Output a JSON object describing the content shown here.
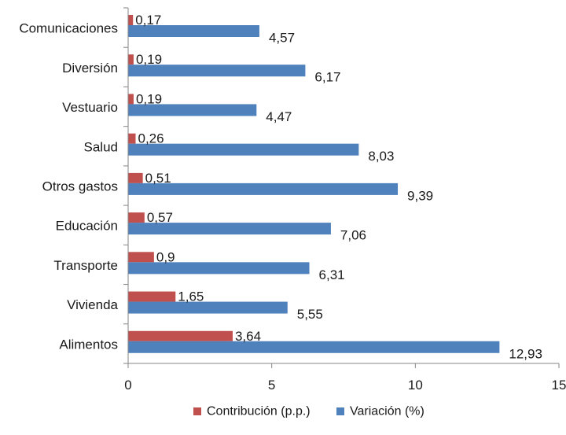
{
  "chart_data": {
    "type": "bar",
    "orientation": "horizontal",
    "title": "",
    "xlabel": "",
    "ylabel": "",
    "categories": [
      "Comunicaciones",
      "Diversión",
      "Vestuario",
      "Salud",
      "Otros gastos",
      "Educación",
      "Transporte",
      "Vivienda",
      "Alimentos"
    ],
    "series": [
      {
        "name": "Contribución (p.p.)",
        "color": "#c0504d",
        "values": [
          0.17,
          0.19,
          0.19,
          0.26,
          0.51,
          0.57,
          0.9,
          1.65,
          3.64
        ],
        "labels": [
          "0,17",
          "0,19",
          "0,19",
          "0,26",
          "0,51",
          "0,57",
          "0,9",
          "1,65",
          "3,64"
        ]
      },
      {
        "name": "Variación (%)",
        "color": "#4f81bd",
        "values": [
          4.57,
          6.17,
          4.47,
          8.03,
          9.39,
          7.06,
          6.31,
          5.55,
          12.93
        ],
        "labels": [
          "4,57",
          "6,17",
          "4,47",
          "8,03",
          "9,39",
          "7,06",
          "6,31",
          "5,55",
          "12,93"
        ]
      }
    ],
    "xlim": [
      0,
      15
    ],
    "xticks": [
      0,
      5,
      10,
      15
    ],
    "xtick_labels": [
      "0",
      "5",
      "10",
      "15"
    ],
    "grid": false,
    "legend_position": "bottom"
  }
}
